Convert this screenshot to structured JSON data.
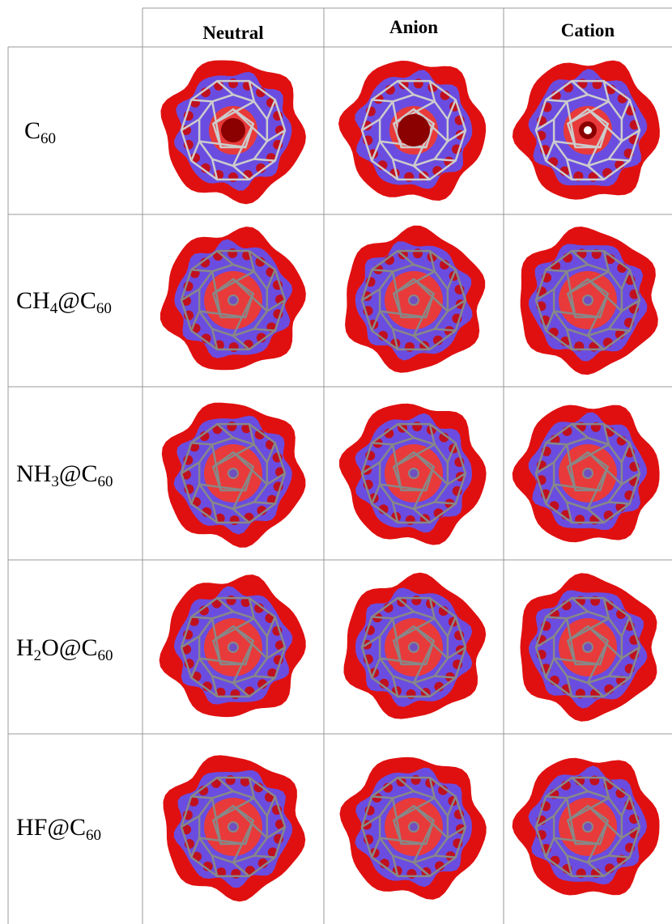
{
  "table": {
    "header": [
      "Neutral",
      "Anion",
      "Cation"
    ],
    "rows": [
      {
        "label": [
          {
            "text": "C"
          },
          {
            "sub": "60"
          }
        ]
      },
      {
        "label": [
          {
            "text": "CH"
          },
          {
            "sub": "4"
          },
          {
            "text": "@C"
          },
          {
            "sub": "60"
          }
        ]
      },
      {
        "label": [
          {
            "text": "NH"
          },
          {
            "sub": "3"
          },
          {
            "text": "@C"
          },
          {
            "sub": "60"
          }
        ]
      },
      {
        "label": [
          {
            "text": "H"
          },
          {
            "sub": "2"
          },
          {
            "text": "O@C"
          },
          {
            "sub": "60"
          }
        ]
      },
      {
        "label": [
          {
            "text": "HF@C"
          },
          {
            "sub": "60"
          }
        ]
      }
    ]
  }
}
